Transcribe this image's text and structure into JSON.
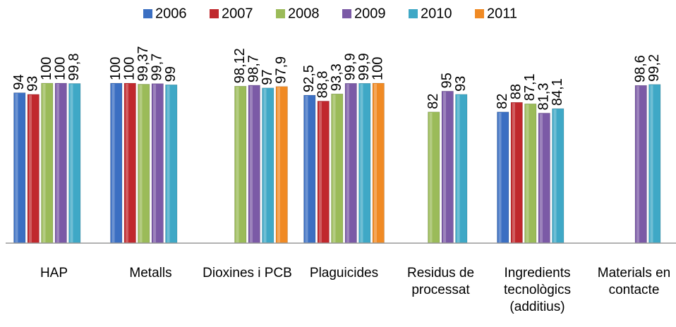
{
  "chart_data": {
    "type": "bar",
    "categories": [
      "HAP",
      "Metalls",
      "Dioxines i PCB",
      "Plaguicides",
      "Residus de processat",
      "Ingredients tecnològics (additius)",
      "Materials en contacte"
    ],
    "ylim": [
      0,
      100
    ],
    "legend": "top",
    "series": [
      {
        "name": "2006",
        "color": "#3b6fc2",
        "values": [
          94,
          100,
          null,
          92.5,
          null,
          82,
          null
        ],
        "value_labels": [
          "94",
          "100",
          null,
          "92,5",
          null,
          "82",
          null
        ]
      },
      {
        "name": "2007",
        "color": "#c0282d",
        "values": [
          93,
          100,
          null,
          88.8,
          null,
          88,
          null
        ],
        "value_labels": [
          "93",
          "100",
          null,
          "88,8",
          null,
          "88",
          null
        ]
      },
      {
        "name": "2008",
        "color": "#9bbb59",
        "values": [
          100,
          99.37,
          98.12,
          93.3,
          82,
          87.1,
          null
        ],
        "value_labels": [
          "100",
          "99,37",
          "98,12",
          "93,3",
          "82",
          "87,1",
          null
        ]
      },
      {
        "name": "2009",
        "color": "#7b5aa6",
        "values": [
          100,
          99.7,
          98.7,
          99.9,
          95,
          81.3,
          98.6
        ],
        "value_labels": [
          "100",
          "99,7",
          "98,7",
          "99,9",
          "95",
          "81,3",
          "98,6"
        ]
      },
      {
        "name": "2010",
        "color": "#3fa8c6",
        "values": [
          99.8,
          99,
          97,
          99.9,
          93,
          84.1,
          99.2
        ],
        "value_labels": [
          "99,8",
          "99",
          "97",
          "99,9",
          "93",
          "84,1",
          "99,2"
        ]
      },
      {
        "name": "2011",
        "color": "#f08a24",
        "values": [
          null,
          null,
          97.9,
          100,
          null,
          null,
          null
        ],
        "value_labels": [
          null,
          null,
          "97,9",
          "100",
          null,
          null,
          null
        ]
      }
    ]
  }
}
